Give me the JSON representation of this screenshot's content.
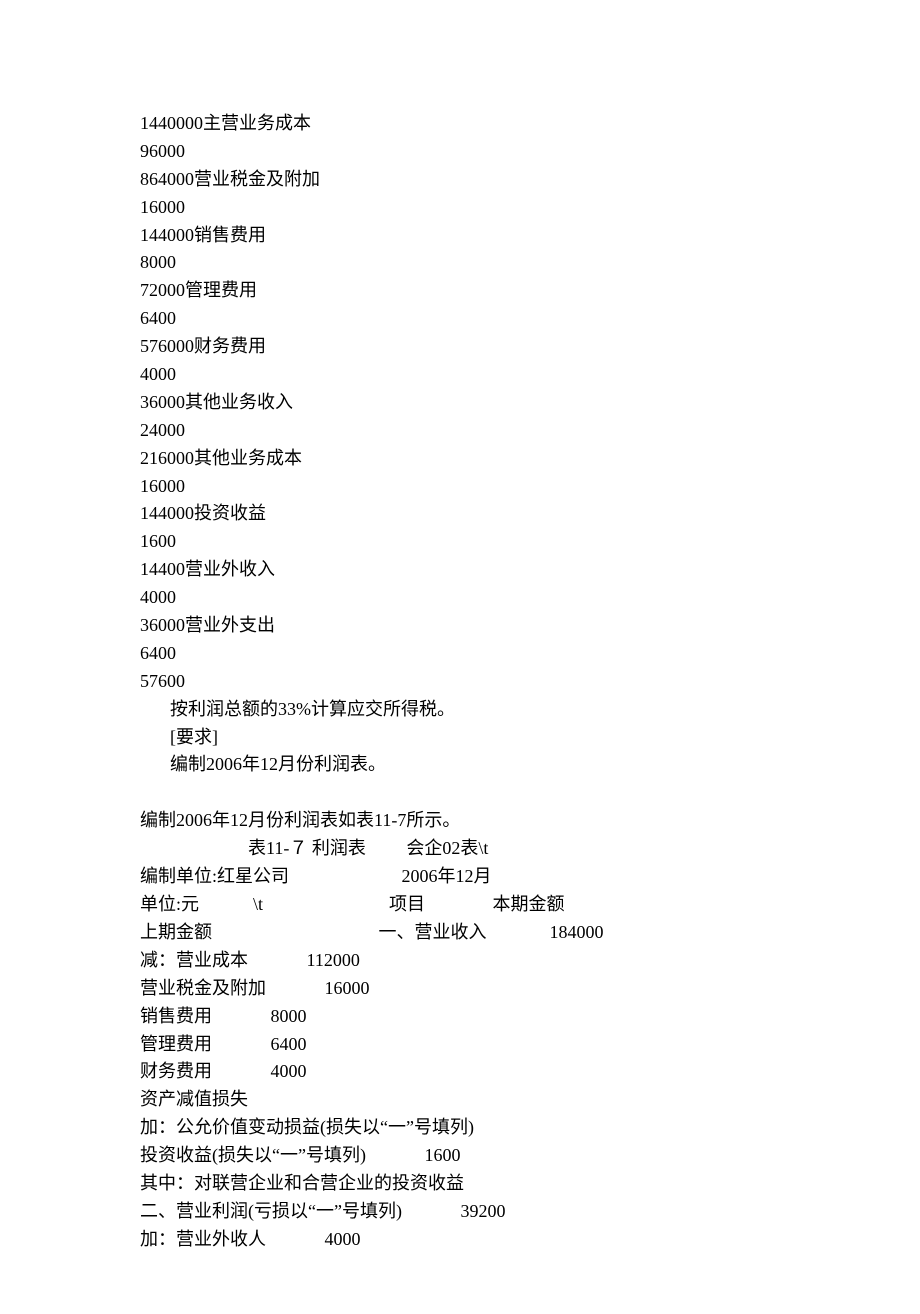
{
  "upper": {
    "lines": [
      "1440000主营业务成本",
      "96000",
      "864000营业税金及附加",
      "16000",
      "144000销售费用",
      "8000",
      "72000管理费用",
      "6400",
      "576000财务费用",
      "4000",
      "36000其他业务收入",
      "24000",
      "216000其他业务成本",
      "16000",
      "144000投资收益",
      "1600",
      "14400营业外收入",
      "4000",
      "36000营业外支出",
      "6400",
      "57600"
    ],
    "note1": "按利润总额的33%计算应交所得税。",
    "note2": "[要求]",
    "note3": "编制2006年12月份利润表。"
  },
  "lower": {
    "intro": "编制2006年12月份利润表如表11-7所示。",
    "title_line": "                        表11-７ 利润表         会企02表\\t",
    "header_line": "编制单位:红星公司                         2006年12月",
    "unit_line": "单位:元            \\t                            项目               本期金额",
    "prev_line": "上期金额                                     一、营业收入              184000",
    "rows": [
      "减：营业成本             112000",
      "营业税金及附加             16000",
      "销售费用             8000",
      "管理费用             6400",
      "财务费用             4000",
      "资产减值损失",
      "加：公允价值变动损益(损失以“一”号填列)",
      "投资收益(损失以“一”号填列)             1600",
      "其中：对联营企业和合营企业的投资收益",
      "二、营业利润(亏损以“一”号填列)             39200",
      "加：营业外收人             4000"
    ]
  }
}
